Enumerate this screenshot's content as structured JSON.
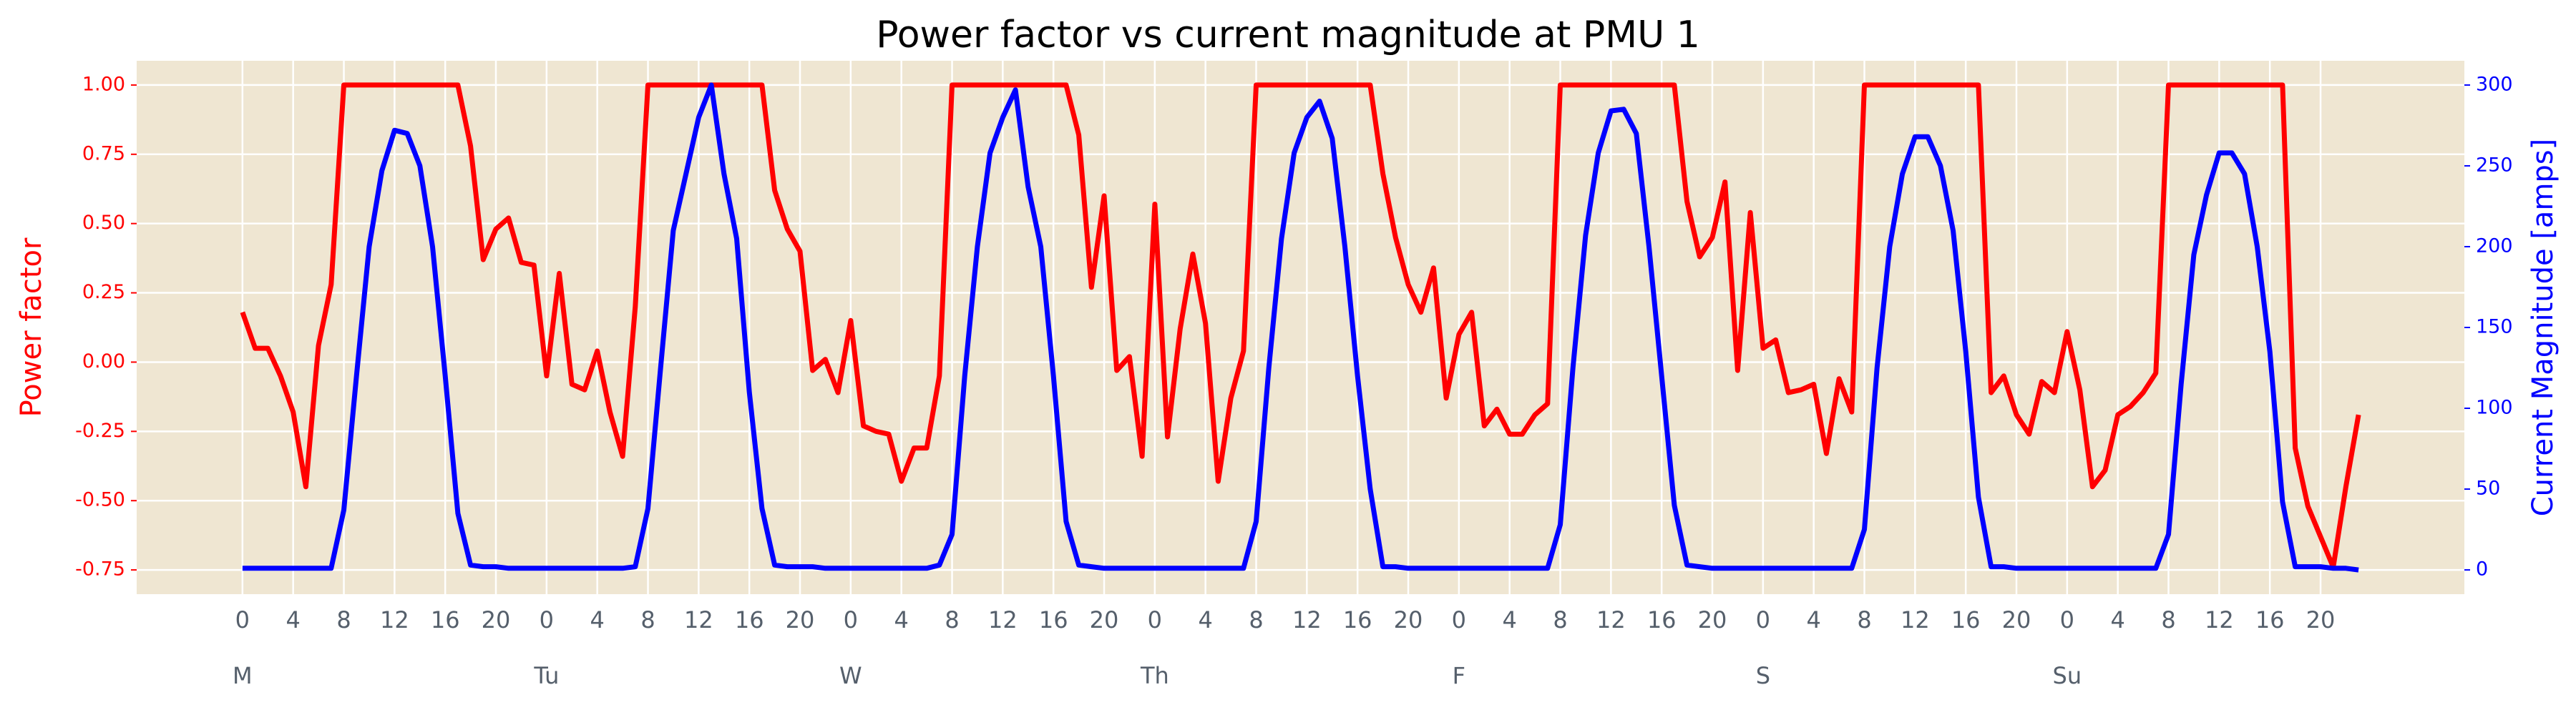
{
  "chart_data": {
    "type": "line",
    "title": "Power factor vs current magnitude at PMU 1",
    "y_label": "Power factor",
    "y2_label": "Current Magnitude [amps]",
    "y_label_color": "#ff0000",
    "y2_label_color": "#0000ff",
    "background": "#efe6d2",
    "grid": true,
    "x": [
      0,
      1,
      2,
      3,
      4,
      5,
      6,
      7,
      8,
      9,
      10,
      11,
      12,
      13,
      14,
      15,
      16,
      17,
      18,
      19,
      20,
      21,
      22,
      23,
      24,
      25,
      26,
      27,
      28,
      29,
      30,
      31,
      32,
      33,
      34,
      35,
      36,
      37,
      38,
      39,
      40,
      41,
      42,
      43,
      44,
      45,
      46,
      47,
      48,
      49,
      50,
      51,
      52,
      53,
      54,
      55,
      56,
      57,
      58,
      59,
      60,
      61,
      62,
      63,
      64,
      65,
      66,
      67,
      68,
      69,
      70,
      71,
      72,
      73,
      74,
      75,
      76,
      77,
      78,
      79,
      80,
      81,
      82,
      83,
      84,
      85,
      86,
      87,
      88,
      89,
      90,
      91,
      92,
      93,
      94,
      95,
      96,
      97,
      98,
      99,
      100,
      101,
      102,
      103,
      104,
      105,
      106,
      107,
      108,
      109,
      110,
      111,
      112,
      113,
      114,
      115,
      116,
      117,
      118,
      119,
      120,
      121,
      122,
      123,
      124,
      125,
      126,
      127,
      128,
      129,
      130,
      131,
      132,
      133,
      134,
      135,
      136,
      137,
      138,
      139,
      140,
      141,
      142,
      143,
      144,
      145,
      146,
      147,
      148,
      149,
      150,
      151,
      152,
      153,
      154,
      155,
      156,
      157,
      158,
      159,
      160,
      161,
      162,
      163,
      164,
      165,
      166,
      167
    ],
    "series": [
      {
        "name": "Power factor",
        "color": "#ff0000",
        "values": [
          0.18,
          0.05,
          0.05,
          -0.05,
          -0.18,
          -0.45,
          0.06,
          0.28,
          1,
          1,
          1,
          1,
          1,
          1,
          1,
          1,
          1,
          1,
          0.78,
          0.37,
          0.48,
          0.52,
          0.36,
          0.35,
          -0.05,
          0.32,
          -0.08,
          -0.1,
          0.04,
          -0.18,
          -0.34,
          0.2,
          1,
          1,
          1,
          1,
          1,
          1,
          1,
          1,
          1,
          1,
          0.62,
          0.48,
          0.4,
          -0.03,
          0.01,
          -0.11,
          0.15,
          -0.23,
          -0.25,
          -0.26,
          -0.43,
          -0.31,
          -0.31,
          -0.05,
          1,
          1,
          1,
          1,
          1,
          1,
          1,
          1,
          1,
          1,
          0.82,
          0.27,
          0.6,
          -0.03,
          0.02,
          -0.34,
          0.57,
          -0.27,
          0.12,
          0.39,
          0.14,
          -0.43,
          -0.13,
          0.04,
          1,
          1,
          1,
          1,
          1,
          1,
          1,
          1,
          1,
          1,
          0.68,
          0.45,
          0.28,
          0.18,
          0.34,
          -0.13,
          0.1,
          0.18,
          -0.23,
          -0.17,
          -0.26,
          -0.26,
          -0.19,
          -0.15,
          1,
          1,
          1,
          1,
          1,
          1,
          1,
          1,
          1,
          1,
          0.58,
          0.38,
          0.45,
          0.65,
          -0.03,
          0.54,
          0.05,
          0.08,
          -0.11,
          -0.1,
          -0.08,
          -0.33,
          -0.06,
          -0.18,
          1,
          1,
          1,
          1,
          1,
          1,
          1,
          1,
          1,
          1,
          -0.11,
          -0.05,
          -0.19,
          -0.26,
          -0.07,
          -0.11,
          0.11,
          -0.1,
          -0.45,
          -0.39,
          -0.19,
          -0.16,
          -0.11,
          -0.04,
          1,
          1,
          1,
          1,
          1,
          1,
          1,
          1,
          1,
          1,
          -0.31,
          -0.52,
          -0.63,
          -0.74,
          -0.45,
          -0.19
        ]
      },
      {
        "name": "Current Magnitude",
        "color": "#0000ff",
        "axis": "y2",
        "values": [
          1,
          1,
          1,
          1,
          1,
          1,
          1,
          1,
          37,
          120,
          200,
          247,
          272,
          270,
          250,
          200,
          120,
          35,
          3,
          2,
          2,
          1,
          1,
          1,
          1,
          1,
          1,
          1,
          1,
          1,
          1,
          2,
          38,
          125,
          210,
          245,
          280,
          300,
          245,
          205,
          110,
          38,
          3,
          2,
          2,
          2,
          1,
          1,
          1,
          1,
          1,
          1,
          1,
          1,
          1,
          3,
          22,
          120,
          200,
          258,
          280,
          297,
          237,
          200,
          120,
          30,
          3,
          2,
          1,
          1,
          1,
          1,
          1,
          1,
          1,
          1,
          1,
          1,
          1,
          1,
          30,
          125,
          205,
          258,
          280,
          290,
          267,
          200,
          120,
          50,
          2,
          2,
          1,
          1,
          1,
          1,
          1,
          1,
          1,
          1,
          1,
          1,
          1,
          1,
          28,
          125,
          207,
          258,
          284,
          285,
          270,
          200,
          120,
          40,
          3,
          2,
          1,
          1,
          1,
          1,
          1,
          1,
          1,
          1,
          1,
          1,
          1,
          1,
          25,
          125,
          200,
          245,
          268,
          268,
          250,
          210,
          135,
          45,
          2,
          2,
          1,
          1,
          1,
          1,
          1,
          1,
          1,
          1,
          1,
          1,
          1,
          1,
          22,
          115,
          195,
          232,
          258,
          258,
          245,
          200,
          135,
          42,
          2,
          2,
          2,
          1,
          1,
          0
        ]
      }
    ],
    "xlim": [
      -8.35,
      175.35
    ],
    "ylim": [
      -0.8375,
      1.0875
    ],
    "y2lim": [
      -15,
      315
    ],
    "yticks": [
      {
        "value": -0.75,
        "label": "-0.75"
      },
      {
        "value": -0.5,
        "label": "-0.50"
      },
      {
        "value": -0.25,
        "label": "-0.25"
      },
      {
        "value": 0,
        "label": "0.00"
      },
      {
        "value": 0.25,
        "label": "0.25"
      },
      {
        "value": 0.5,
        "label": "0.50"
      },
      {
        "value": 0.75,
        "label": "0.75"
      },
      {
        "value": 1,
        "label": "1.00"
      }
    ],
    "y2ticks": [
      0,
      50,
      100,
      150,
      200,
      250,
      300
    ],
    "xticks": [
      0,
      4,
      8,
      12,
      16,
      20,
      {
        "value": 24,
        "label": "0"
      },
      {
        "value": 28,
        "label": "4"
      },
      {
        "value": 32,
        "label": "8"
      },
      {
        "value": 36,
        "label": "12"
      },
      {
        "value": 40,
        "label": "16"
      },
      {
        "value": 44,
        "label": "20"
      },
      {
        "value": 48,
        "label": "0"
      },
      {
        "value": 52,
        "label": "4"
      },
      {
        "value": 56,
        "label": "8"
      },
      {
        "value": 60,
        "label": "12"
      },
      {
        "value": 64,
        "label": "16"
      },
      {
        "value": 68,
        "label": "20"
      },
      {
        "value": 72,
        "label": "0"
      },
      {
        "value": 76,
        "label": "4"
      },
      {
        "value": 80,
        "label": "8"
      },
      {
        "value": 84,
        "label": "12"
      },
      {
        "value": 88,
        "label": "16"
      },
      {
        "value": 92,
        "label": "20"
      },
      {
        "value": 96,
        "label": "0"
      },
      {
        "value": 100,
        "label": "4"
      },
      {
        "value": 104,
        "label": "8"
      },
      {
        "value": 108,
        "label": "12"
      },
      {
        "value": 112,
        "label": "16"
      },
      {
        "value": 116,
        "label": "20"
      },
      {
        "value": 120,
        "label": "0"
      },
      {
        "value": 124,
        "label": "4"
      },
      {
        "value": 128,
        "label": "8"
      },
      {
        "value": 132,
        "label": "12"
      },
      {
        "value": 136,
        "label": "16"
      },
      {
        "value": 140,
        "label": "20"
      },
      {
        "value": 144,
        "label": "0"
      },
      {
        "value": 148,
        "label": "4"
      },
      {
        "value": 152,
        "label": "8"
      },
      {
        "value": 156,
        "label": "12"
      },
      {
        "value": 160,
        "label": "16"
      },
      {
        "value": 164,
        "label": "20"
      }
    ],
    "day_ticks": [
      {
        "value": 0,
        "label": "M"
      },
      {
        "value": 24,
        "label": "Tu"
      },
      {
        "value": 48,
        "label": "W"
      },
      {
        "value": 72,
        "label": "Th"
      },
      {
        "value": 96,
        "label": "F"
      },
      {
        "value": 120,
        "label": "S"
      },
      {
        "value": 144,
        "label": "Su"
      }
    ]
  }
}
